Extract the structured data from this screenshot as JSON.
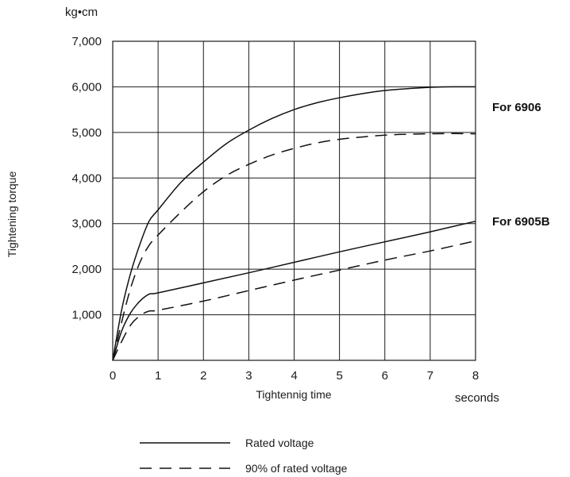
{
  "chart_data": {
    "type": "line",
    "y_unit": "kg•cm",
    "x_unit": "seconds",
    "xlabel": "Tightennig time",
    "ylabel": "Tightening torque",
    "xlim": [
      0,
      8
    ],
    "ylim": [
      0,
      7000
    ],
    "x_ticks": [
      "0",
      "1",
      "2",
      "3",
      "4",
      "5",
      "6",
      "7",
      "8"
    ],
    "y_ticks": [
      "1,000",
      "2,000",
      "3,000",
      "4,000",
      "5,000",
      "6,000",
      "7,000"
    ],
    "grid": true,
    "annotations": [
      "For 6906",
      "For 6905B"
    ],
    "legend": [
      {
        "label": "Rated voltage",
        "style": "solid"
      },
      {
        "label": "90% of rated voltage",
        "style": "dashed"
      }
    ],
    "legend_position": "bottom-center",
    "series": [
      {
        "group": "For 6906",
        "style": "solid",
        "x": [
          0,
          0.2,
          0.4,
          0.6,
          0.8,
          1,
          1.5,
          2,
          2.5,
          3,
          3.5,
          4,
          4.5,
          5,
          5.5,
          6,
          6.5,
          7,
          7.5,
          8
        ],
        "y": [
          0,
          1120,
          1930,
          2550,
          3050,
          3300,
          3900,
          4350,
          4750,
          5050,
          5300,
          5500,
          5650,
          5760,
          5850,
          5920,
          5960,
          5990,
          6000,
          6000
        ]
      },
      {
        "group": "For 6906",
        "style": "dashed",
        "x": [
          0,
          0.2,
          0.4,
          0.6,
          0.8,
          1,
          1.5,
          2,
          2.5,
          3,
          3.5,
          4,
          4.5,
          5,
          5.5,
          6,
          6.5,
          7,
          7.5,
          8
        ],
        "y": [
          0,
          850,
          1600,
          2150,
          2520,
          2750,
          3250,
          3700,
          4050,
          4300,
          4500,
          4650,
          4770,
          4850,
          4900,
          4940,
          4960,
          4970,
          4975,
          4970
        ]
      },
      {
        "group": "For 6905B",
        "style": "solid",
        "x": [
          0,
          0.2,
          0.4,
          0.6,
          0.8,
          1,
          2,
          3,
          4,
          5,
          6,
          7,
          8
        ],
        "y": [
          0,
          650,
          1050,
          1300,
          1450,
          1480,
          1700,
          1920,
          2150,
          2380,
          2600,
          2820,
          3050
        ]
      },
      {
        "group": "For 6905B",
        "style": "dashed",
        "x": [
          0,
          0.2,
          0.4,
          0.6,
          0.8,
          1,
          2,
          3,
          4,
          5,
          6,
          7,
          8
        ],
        "y": [
          0,
          420,
          780,
          980,
          1080,
          1100,
          1300,
          1530,
          1760,
          1980,
          2200,
          2400,
          2620
        ]
      }
    ]
  }
}
